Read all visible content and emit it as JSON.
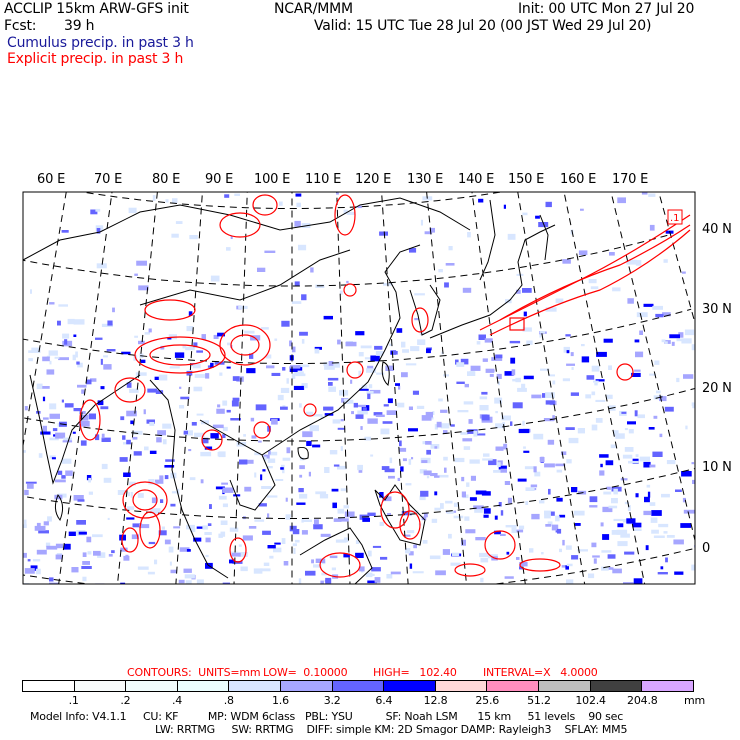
{
  "header": {
    "title": "ACCLIP 15km ARW-GFS init",
    "org": "NCAR/MMM",
    "init": "Init: 00 UTC Mon 27 Jul 20",
    "fcst_label": "Fcst:",
    "fcst_value": "39 h",
    "valid": "Valid: 15 UTC Tue 28 Jul 20 (00 JST Wed 29 Jul 20)",
    "field1": "Cumulus precip. in past 3 h",
    "field2": "Explicit precip. in past 3 h"
  },
  "map": {
    "lon_labels": [
      "60 E",
      "70 E",
      "80 E",
      "90 E",
      "100 E",
      "110 E",
      "120 E",
      "130 E",
      "140 E",
      "150 E",
      "160 E",
      "170 E"
    ],
    "lat_labels": [
      "40 N",
      "30 N",
      "20 N",
      "10 N",
      "0"
    ],
    "contour_label": ".1"
  },
  "contours": {
    "units": "CONTOURS:  UNITS=mm",
    "low": "LOW=  0.10000",
    "high": "HIGH=   102.40",
    "interval": "INTERVAL=X   4.0000"
  },
  "legend": {
    "colors": [
      "#ffffff",
      "#f7fbfb",
      "#f0fcfc",
      "#eafefe",
      "#d8e6ff",
      "#a6a6ff",
      "#6464ff",
      "#0000ff",
      "#ffd8d8",
      "#ff8ebe",
      "#bebebe",
      "#404040",
      "#d8a6ff"
    ],
    "ticks": [
      ".1",
      ".2",
      ".4",
      ".8",
      "1.6",
      "3.2",
      "6.4",
      "12.8",
      "25.6",
      "51.2",
      "102.4",
      "204.8"
    ],
    "units": "mm"
  },
  "model_info": {
    "line1": "Model Info: V4.1.1     CU: KF         MP: WDM 6class   PBL: YSU          SF: Noah LSM      15 km     51 levels    90 sec",
    "line2": "LW: RRTMG     SW: RRTMG    DIFF: simple KM: 2D Smagor DAMP: Rayleigh3    SFLAY: MM5"
  }
}
